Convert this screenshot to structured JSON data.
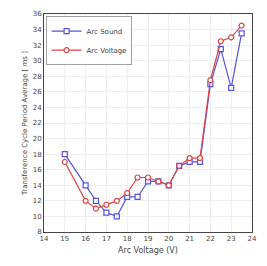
{
  "chart_data": {
    "type": "line",
    "x": [
      15,
      16,
      16.5,
      17,
      17.5,
      18,
      18.5,
      19,
      19.5,
      20,
      20.5,
      21,
      21.5,
      22,
      22.5,
      23,
      23.5
    ],
    "series": [
      {
        "name": "Arc Sound",
        "color": "#5555dd",
        "marker": "square",
        "line_style": "solid",
        "values": [
          18,
          14,
          12,
          10.5,
          10,
          12.5,
          12.5,
          14.5,
          14.5,
          14,
          16.5,
          17,
          17,
          27,
          31.5,
          26.5,
          33.5
        ]
      },
      {
        "name": "Arc Voltage",
        "color": "#dd4444",
        "marker": "circle",
        "line_style": "solid",
        "values": [
          17,
          12,
          11,
          11.5,
          12,
          13,
          15,
          15,
          14.5,
          14,
          16.5,
          17.5,
          17.5,
          27.5,
          32.5,
          33,
          34.5
        ]
      }
    ],
    "x_label": "Arc Voltage (V)",
    "y_label": "Transference Cycle Period Average [ ms ]",
    "xlim": [
      14,
      24
    ],
    "ylim": [
      8,
      36
    ],
    "xticks": [
      14,
      15,
      16,
      17,
      18,
      19,
      20,
      21,
      22,
      23,
      24
    ],
    "yticks": [
      8,
      10,
      12,
      14,
      16,
      18,
      20,
      22,
      24,
      26,
      28,
      30,
      32,
      34,
      36
    ],
    "grid": true,
    "legend": "upper left"
  }
}
